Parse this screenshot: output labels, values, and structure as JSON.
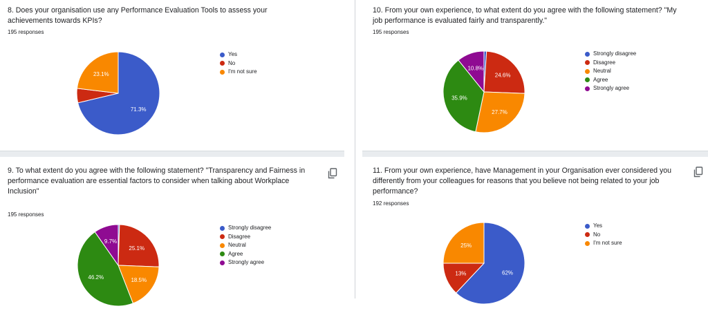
{
  "colors": {
    "blue": "#3b5bc9",
    "red": "#cc2a12",
    "orange": "#f98800",
    "green": "#2d8a12",
    "purple": "#8f0b92"
  },
  "icons": {
    "copy": "copy-icon"
  },
  "panels": [
    {
      "question": "8. Does your organisation use any Performance Evaluation Tools to assess your achievements towards KPIs?",
      "responses": "195 responses"
    },
    {
      "question": "10. From your own experience, to what extent do you agree with the following statement? \"My job performance is evaluated fairly and transparently.\"",
      "responses": "195 responses"
    },
    {
      "question": "9. To what extent do you agree with the following statement? \"Transparency and Fairness in performance evaluation are essential factors to consider when talking about Workplace Inclusion\"",
      "responses": "195 responses"
    },
    {
      "question": "11. From your own experience, have Management in your Organisation ever considered you differently from your colleagues for reasons that you believe not being related to your job performance?",
      "responses": "192 responses"
    }
  ],
  "chart_data": [
    {
      "type": "pie",
      "categories": [
        "Yes",
        "No",
        "I'm not sure"
      ],
      "values": [
        71.3,
        5.6,
        23.1
      ],
      "labels": [
        "71.3%",
        "",
        "23.1%"
      ],
      "colors": [
        "#3b5bc9",
        "#cc2a12",
        "#f98800"
      ],
      "legend": "right"
    },
    {
      "type": "pie",
      "categories": [
        "Strongly disagree",
        "Disagree",
        "Neutral",
        "Agree",
        "Strongly agree"
      ],
      "values": [
        1.0,
        24.6,
        27.7,
        35.9,
        10.8
      ],
      "labels": [
        "",
        "24.6%",
        "27.7%",
        "35.9%",
        "10.8%"
      ],
      "colors": [
        "#3b5bc9",
        "#cc2a12",
        "#f98800",
        "#2d8a12",
        "#8f0b92"
      ],
      "legend": "right"
    },
    {
      "type": "pie",
      "categories": [
        "Strongly disagree",
        "Disagree",
        "Neutral",
        "Agree",
        "Strongly agree"
      ],
      "values": [
        0.5,
        25.1,
        18.5,
        46.2,
        9.7
      ],
      "labels": [
        "",
        "25.1%",
        "18.5%",
        "46.2%",
        "9.7%"
      ],
      "colors": [
        "#3b5bc9",
        "#cc2a12",
        "#f98800",
        "#2d8a12",
        "#8f0b92"
      ],
      "legend": "right"
    },
    {
      "type": "pie",
      "categories": [
        "Yes",
        "No",
        "I'm not sure"
      ],
      "values": [
        62,
        13,
        25
      ],
      "labels": [
        "62%",
        "13%",
        "25%"
      ],
      "colors": [
        "#3b5bc9",
        "#cc2a12",
        "#f98800"
      ],
      "legend": "right"
    }
  ]
}
